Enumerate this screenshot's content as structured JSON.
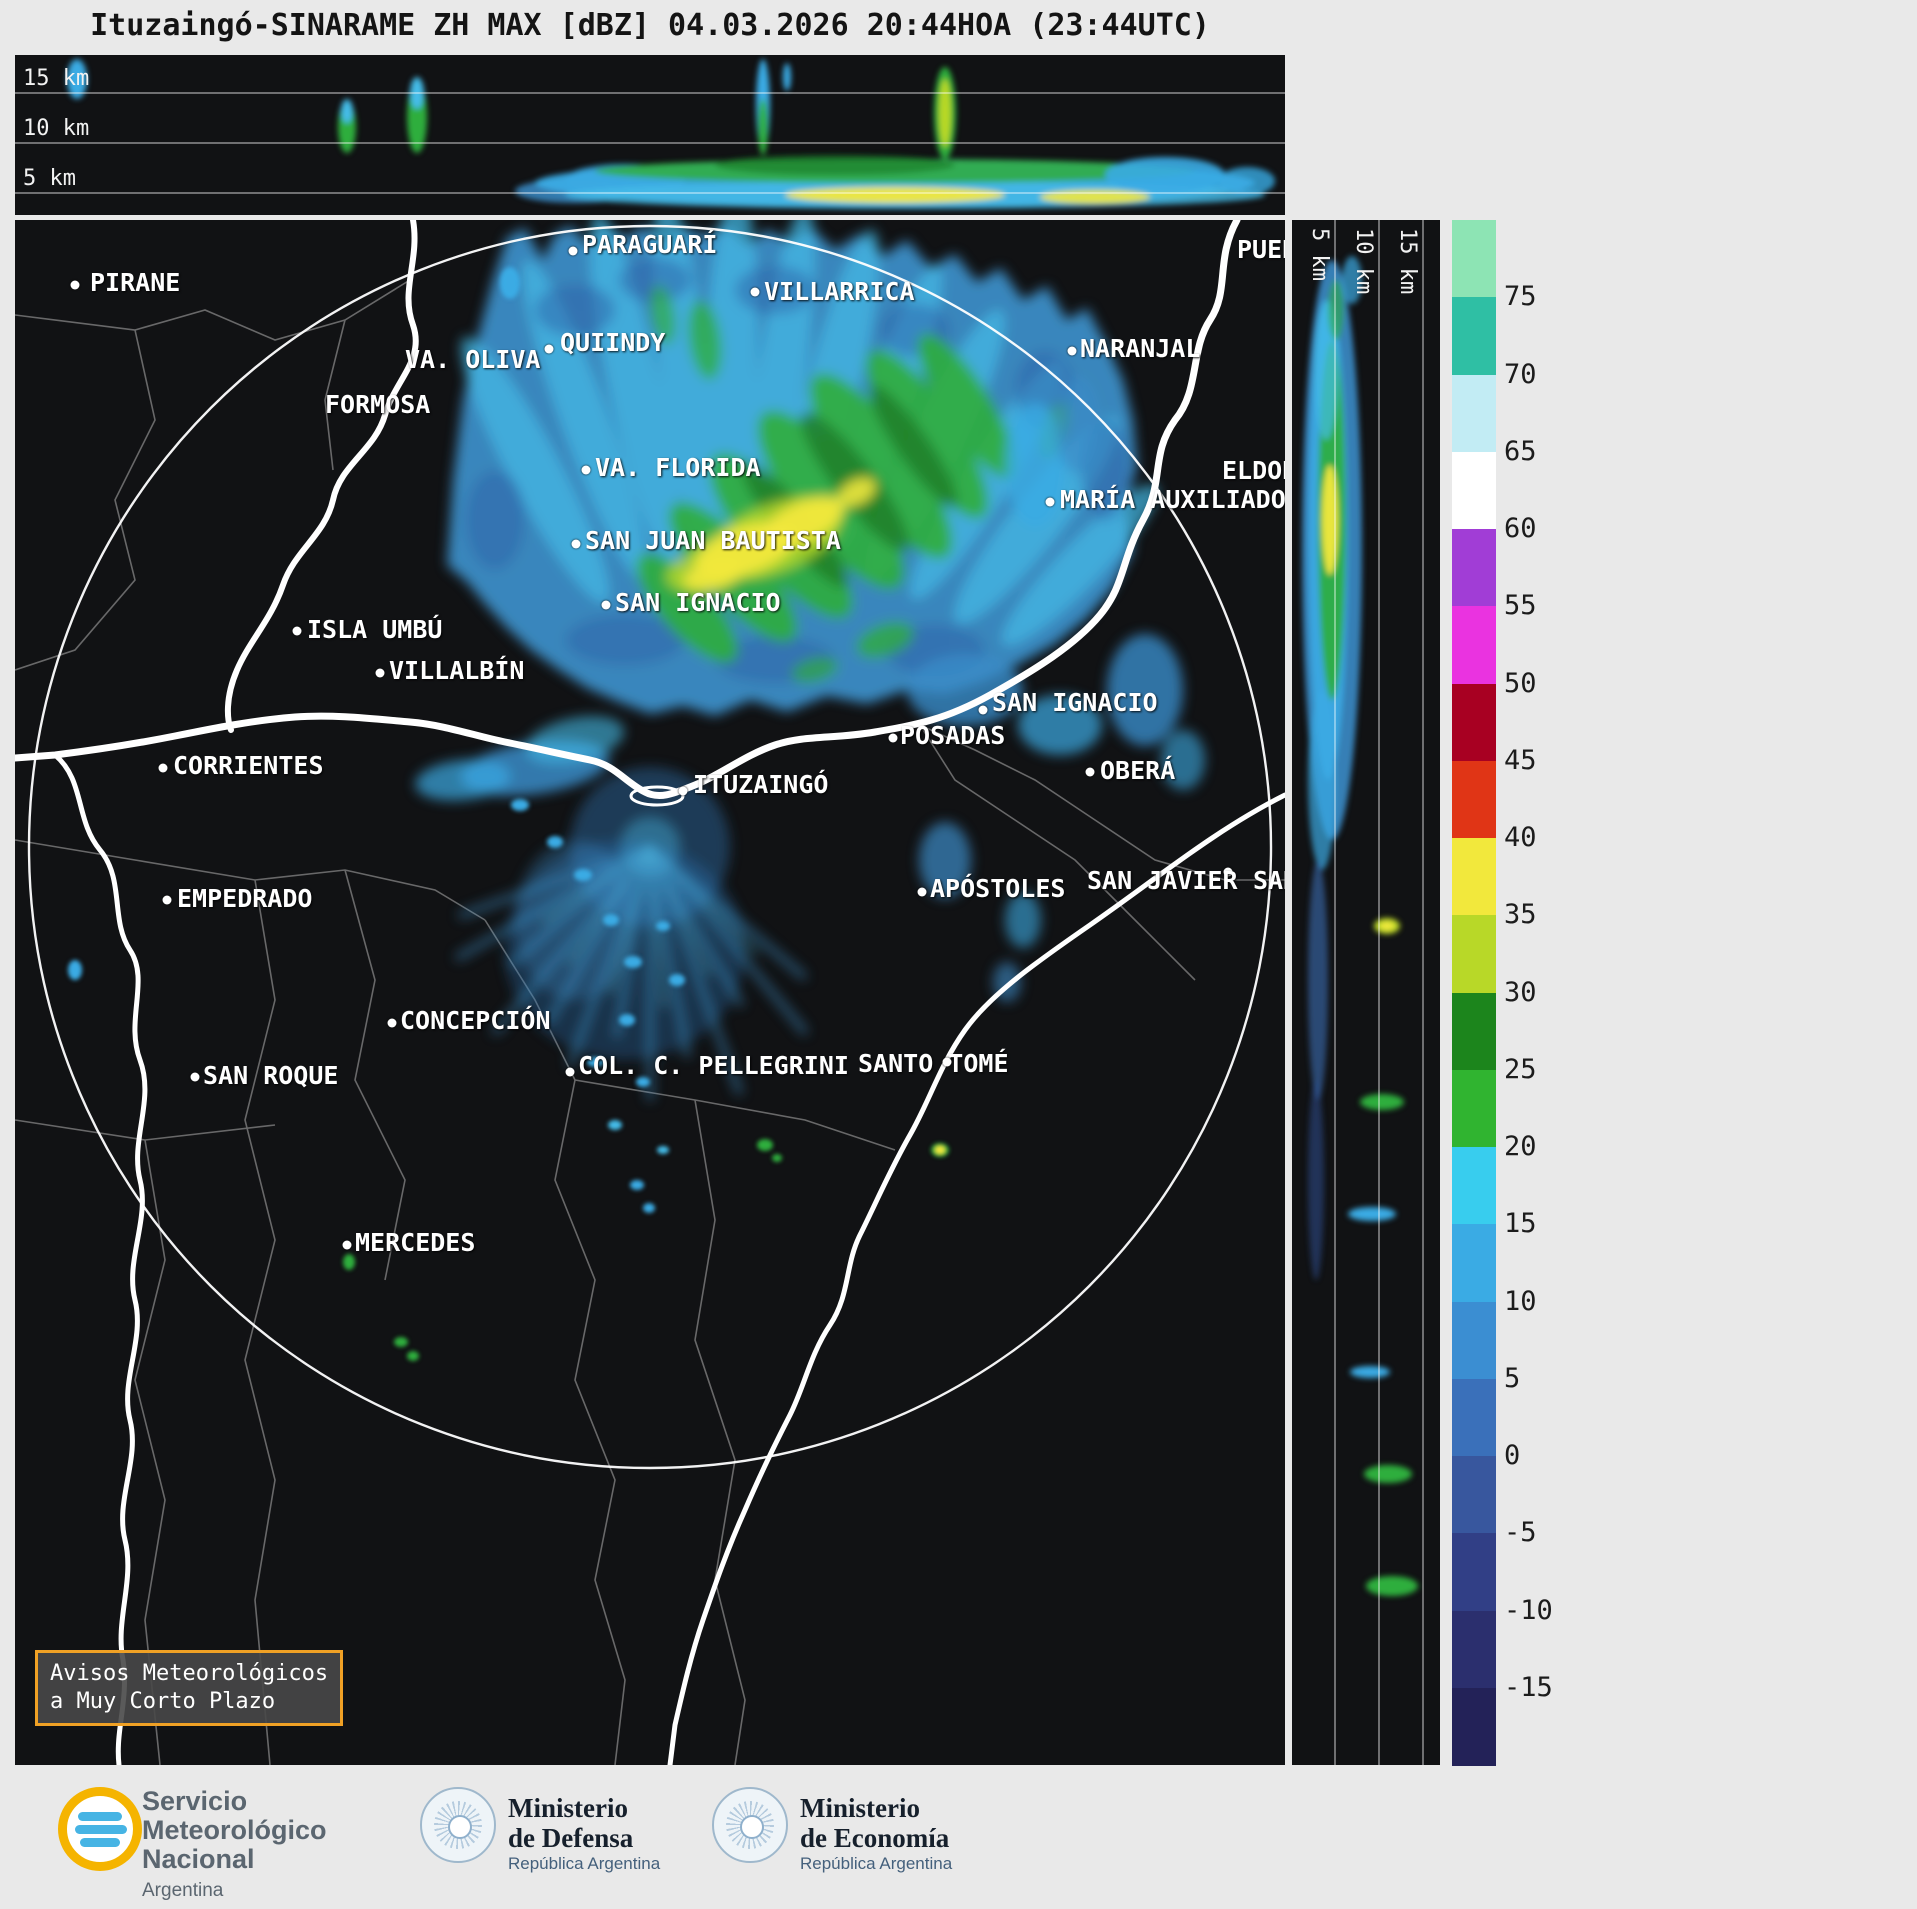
{
  "title": "Ituzaingó-SINARAME ZH MAX [dBZ] 04.03.2026 20:44HOA (23:44UTC)",
  "top_panel": {
    "height_labels": [
      "15 km",
      "10 km",
      "5 km"
    ]
  },
  "right_panel": {
    "height_labels": [
      "5 km",
      "10 km",
      "15 km"
    ]
  },
  "colorbar": {
    "ticks": [
      "75",
      "70",
      "65",
      "60",
      "55",
      "50",
      "45",
      "40",
      "35",
      "30",
      "25",
      "20",
      "15",
      "10",
      "5",
      "0",
      "-5",
      "-10",
      "-15"
    ],
    "colors": [
      "#8de4b4",
      "#2fbfa4",
      "#c2ecf4",
      "#ffffff",
      "#a13dd6",
      "#ea33e0",
      "#a80022",
      "#e03516",
      "#f2e83c",
      "#b8d828",
      "#1c851c",
      "#30b430",
      "#38cdee",
      "#3aabe4",
      "#3b8ed2",
      "#3a70ba",
      "#38579e",
      "#313f86",
      "#2b2f6e",
      "#232258"
    ]
  },
  "map": {
    "cities": [
      {
        "name": "PIRANE",
        "label": [
          75,
          48
        ],
        "dot": [
          60,
          65
        ]
      },
      {
        "name": "PARAGUARÍ",
        "label": [
          567,
          10
        ],
        "dot": [
          558,
          31
        ]
      },
      {
        "name": "VILLARRICA",
        "label": [
          749,
          57
        ],
        "dot": [
          740,
          72
        ]
      },
      {
        "name": "QUIINDY",
        "label": [
          545,
          108
        ],
        "dot": null
      },
      {
        "name": "VA. OLIVA",
        "label": [
          390,
          125
        ],
        "dot": [
          534,
          129
        ]
      },
      {
        "name": "FORMOSA",
        "label": [
          310,
          170
        ],
        "dot": null
      },
      {
        "name": "NARANJAL",
        "label": [
          1065,
          114
        ],
        "dot": [
          1057,
          131
        ]
      },
      {
        "name": "VA. FLORIDA",
        "label": [
          580,
          233
        ],
        "dot": [
          571,
          250
        ]
      },
      {
        "name": "ELDOR",
        "label": [
          1207,
          236
        ],
        "dot": null
      },
      {
        "name": "MARÍA AUXILIADOR",
        "label": [
          1045,
          265
        ],
        "dot": [
          1035,
          282
        ]
      },
      {
        "name": "SAN JUAN BAUTISTA",
        "label": [
          570,
          306
        ],
        "dot": [
          561,
          324
        ]
      },
      {
        "name": "SAN IGNACIO",
        "label": [
          600,
          368
        ],
        "dot": [
          591,
          385
        ]
      },
      {
        "name": "ISLA UMBÚ",
        "label": [
          292,
          395
        ],
        "dot": [
          282,
          411
        ]
      },
      {
        "name": "VILLALBÍN",
        "label": [
          374,
          436
        ],
        "dot": [
          365,
          453
        ]
      },
      {
        "name": "SAN IGNACIO",
        "label": [
          977,
          468
        ],
        "dot": [
          968,
          490
        ]
      },
      {
        "name": "POSADAS",
        "label": [
          885,
          501
        ],
        "dot": [
          878,
          518
        ]
      },
      {
        "name": "CORRIENTES",
        "label": [
          158,
          531
        ],
        "dot": [
          148,
          548
        ]
      },
      {
        "name": "OBERÁ",
        "label": [
          1085,
          536
        ],
        "dot": [
          1075,
          552
        ]
      },
      {
        "name": "ITUZAINGÓ",
        "label": [
          678,
          550
        ],
        "dot": [
          668,
          571
        ]
      },
      {
        "name": "EMPEDRADO",
        "label": [
          162,
          664
        ],
        "dot": [
          152,
          680
        ]
      },
      {
        "name": "APÓSTOLES",
        "label": [
          915,
          654
        ],
        "dot": [
          907,
          672
        ]
      },
      {
        "name": "SAN JAVIER",
        "label": [
          1072,
          646
        ],
        "dot": [
          1213,
          652
        ]
      },
      {
        "name": "SAN",
        "label": [
          1238,
          646
        ],
        "dot": null
      },
      {
        "name": "PUER",
        "label": [
          1222,
          15
        ],
        "dot": null
      },
      {
        "name": "CONCEPCIÓN",
        "label": [
          385,
          786
        ],
        "dot": [
          377,
          803
        ]
      },
      {
        "name": "COL. C. PELLEGRINI",
        "label": [
          563,
          831
        ],
        "dot": [
          555,
          852
        ]
      },
      {
        "name": "SANTO TOMÉ",
        "label": [
          843,
          829
        ],
        "dot": [
          932,
          842
        ]
      },
      {
        "name": "SAN ROQUE",
        "label": [
          188,
          841
        ],
        "dot": [
          180,
          857
        ]
      },
      {
        "name": "MERCEDES",
        "label": [
          340,
          1008
        ],
        "dot": [
          332,
          1025
        ]
      }
    ]
  },
  "notice": {
    "line1": "Avisos Meteorológicos",
    "line2": "a Muy Corto Plazo"
  },
  "footer": {
    "smn": {
      "line1": "Servicio",
      "line2": "Meteorológico",
      "line3": "Nacional",
      "line4": "Argentina"
    },
    "defensa": {
      "line1": "Ministerio",
      "line2": "de Defensa",
      "line3": "República Argentina"
    },
    "economia": {
      "line1": "Ministerio",
      "line2": "de Economía",
      "line3": "República Argentina"
    }
  }
}
